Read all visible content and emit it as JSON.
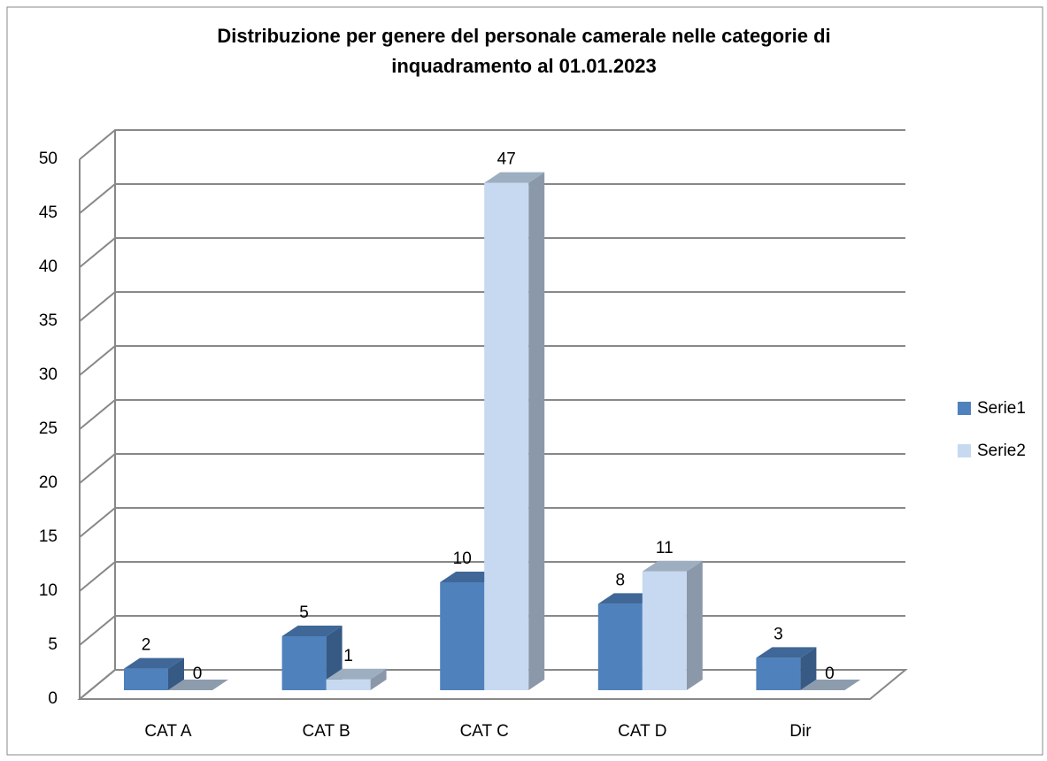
{
  "chart_data": {
    "type": "bar3d",
    "title": [
      "Distribuzione per genere del personale camerale nelle categorie di",
      "inquadramento al 01.01.2023"
    ],
    "categories": [
      "CAT A",
      "CAT B",
      "CAT C",
      "CAT D",
      "Dir"
    ],
    "series": [
      {
        "name": "Serie1",
        "color": "#4f81bd",
        "values": [
          2,
          5,
          10,
          8,
          3
        ]
      },
      {
        "name": "Serie2",
        "color": "#c6d9f1",
        "values": [
          0,
          1,
          47,
          11,
          0
        ]
      }
    ],
    "ylim": [
      0,
      50
    ],
    "yticks": [
      0,
      5,
      10,
      15,
      20,
      25,
      30,
      35,
      40,
      45,
      50
    ],
    "grid": true,
    "legend": "right"
  }
}
